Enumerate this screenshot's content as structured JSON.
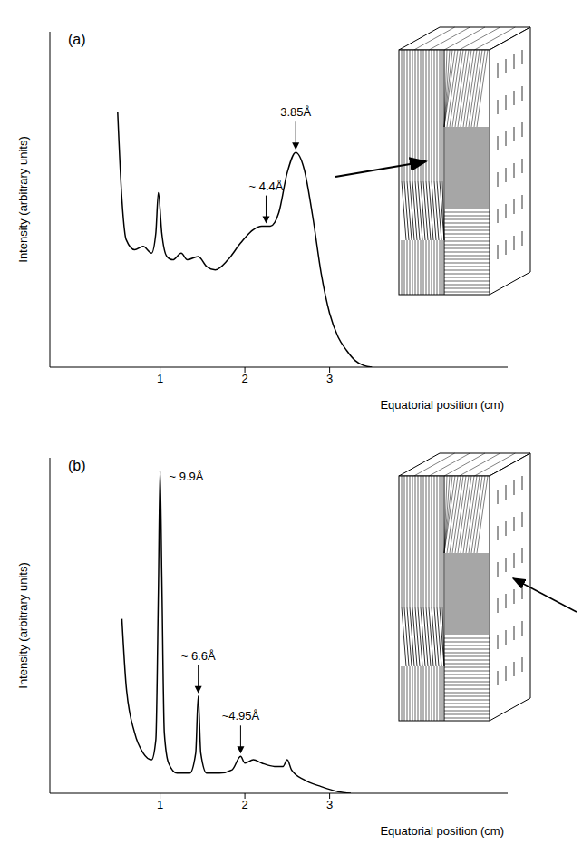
{
  "chart_data": [
    {
      "type": "line",
      "panel_label": "(a)",
      "x_label": "Equatorial position (cm)",
      "y_label": "Intensity (arbitrary units)",
      "x": [
        0.5,
        0.55,
        0.6,
        0.7,
        0.8,
        0.9,
        0.95,
        0.98,
        1.02,
        1.08,
        1.15,
        1.25,
        1.32,
        1.45,
        1.55,
        1.65,
        1.8,
        1.95,
        2.1,
        2.2,
        2.3,
        2.4,
        2.5,
        2.6,
        2.7,
        2.8,
        2.9,
        3.0,
        3.1,
        3.2,
        3.3,
        3.4,
        3.5
      ],
      "values": [
        7.6,
        5.0,
        3.8,
        3.5,
        3.6,
        3.4,
        4.0,
        5.2,
        4.0,
        3.3,
        3.2,
        3.4,
        3.2,
        3.3,
        3.0,
        2.9,
        3.2,
        3.7,
        4.1,
        4.2,
        4.2,
        4.6,
        5.8,
        6.4,
        5.9,
        4.5,
        2.8,
        1.6,
        0.9,
        0.5,
        0.2,
        0.05,
        0
      ],
      "xlim": [
        -0.3,
        5.1
      ],
      "ylim": [
        0,
        10
      ],
      "xticks": [
        1,
        2,
        3
      ],
      "yticks": [],
      "tick_labels": "x",
      "color": "#000000",
      "annotations": [
        {
          "text": "~ 4.4Å",
          "x": 2.25,
          "y": 4.2
        },
        {
          "text": "3.85Å",
          "x": 2.6,
          "y": 6.4
        }
      ]
    },
    {
      "type": "line",
      "panel_label": "(b)",
      "x_label": "Equatorial position (cm)",
      "y_label": "Intensity (arbitrary units)",
      "x": [
        0.55,
        0.6,
        0.7,
        0.8,
        0.9,
        0.95,
        0.98,
        1.0,
        1.02,
        1.05,
        1.1,
        1.2,
        1.35,
        1.42,
        1.45,
        1.48,
        1.55,
        1.7,
        1.85,
        1.95,
        2.0,
        2.1,
        2.2,
        2.35,
        2.45,
        2.5,
        2.55,
        2.7,
        2.9,
        3.1,
        3.25
      ],
      "values": [
        5.2,
        3.2,
        1.8,
        1.2,
        1.0,
        1.6,
        6.0,
        9.6,
        6.5,
        1.8,
        0.9,
        0.6,
        0.6,
        1.2,
        2.9,
        1.2,
        0.6,
        0.6,
        0.7,
        1.1,
        0.9,
        1.0,
        0.9,
        0.8,
        0.8,
        1.0,
        0.7,
        0.4,
        0.2,
        0.05,
        0
      ],
      "xlim": [
        -0.3,
        5.1
      ],
      "ylim": [
        0,
        10
      ],
      "xticks": [
        1,
        2,
        3
      ],
      "yticks": [],
      "tick_labels": "x",
      "color": "#000000",
      "annotations": [
        {
          "text": "~ 9.9Å",
          "x": 1.0,
          "y": 9.6
        },
        {
          "text": "~ 6.6Å",
          "x": 1.45,
          "y": 2.9
        },
        {
          "text": "~4.95Å",
          "x": 1.95,
          "y": 1.1
        }
      ]
    }
  ]
}
